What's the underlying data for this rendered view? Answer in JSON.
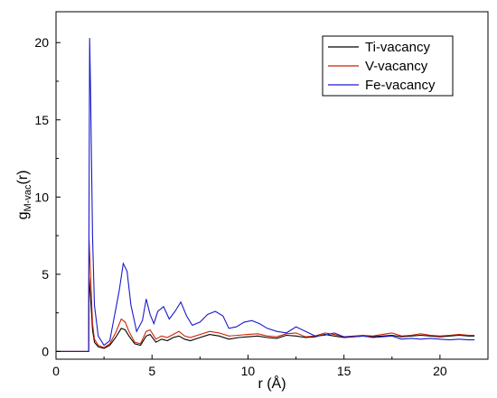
{
  "chart_data": {
    "type": "line",
    "xlabel": "r (Å)",
    "ylabel": "g",
    "ylabel_sub": "M-vac",
    "ylabel_arg": "(r)",
    "xlim": [
      0,
      22.5
    ],
    "ylim": [
      -0.5,
      22
    ],
    "xticks": [
      0,
      5,
      10,
      15,
      20
    ],
    "yticks": [
      0,
      5,
      10,
      15,
      20
    ],
    "legend_position": "top-right",
    "grid": false,
    "series": [
      {
        "name": "Ti-vacancy",
        "color": "#000000",
        "x": [
          0,
          1.7,
          1.72,
          1.8,
          1.9,
          2.0,
          2.2,
          2.5,
          2.8,
          3.1,
          3.4,
          3.6,
          3.8,
          4.1,
          4.4,
          4.7,
          4.9,
          5.2,
          5.5,
          5.8,
          6.1,
          6.4,
          6.7,
          7.0,
          7.5,
          8.0,
          8.5,
          9.0,
          9.5,
          10.0,
          10.5,
          11.0,
          11.5,
          12.0,
          12.5,
          13.0,
          13.5,
          14.0,
          14.5,
          15.0,
          15.5,
          16.0,
          16.5,
          17.0,
          17.5,
          18.0,
          18.5,
          19.0,
          19.5,
          20.0,
          20.5,
          21.0,
          21.5,
          21.8
        ],
        "y": [
          0,
          0,
          4.8,
          3.5,
          1.4,
          0.6,
          0.3,
          0.2,
          0.4,
          0.9,
          1.5,
          1.4,
          1.0,
          0.5,
          0.4,
          1.0,
          1.1,
          0.6,
          0.8,
          0.7,
          0.9,
          1.0,
          0.8,
          0.7,
          0.9,
          1.1,
          1.0,
          0.8,
          0.9,
          0.95,
          1.0,
          0.9,
          0.85,
          1.05,
          1.0,
          0.9,
          0.95,
          1.1,
          1.0,
          0.9,
          0.95,
          1.0,
          0.95,
          1.0,
          1.05,
          0.95,
          1.0,
          1.05,
          1.0,
          0.95,
          1.0,
          1.05,
          1.0,
          1.0
        ]
      },
      {
        "name": "V-vacancy",
        "color": "#cc2200",
        "x": [
          0,
          1.7,
          1.72,
          1.8,
          1.9,
          2.0,
          2.2,
          2.5,
          2.8,
          3.1,
          3.4,
          3.6,
          3.8,
          4.1,
          4.4,
          4.7,
          4.9,
          5.2,
          5.5,
          5.8,
          6.1,
          6.4,
          6.7,
          7.0,
          7.5,
          8.0,
          8.5,
          9.0,
          9.5,
          10.0,
          10.5,
          11.0,
          11.5,
          12.0,
          12.5,
          13.0,
          13.5,
          14.0,
          14.5,
          15.0,
          15.5,
          16.0,
          16.5,
          17.0,
          17.5,
          18.0,
          18.5,
          19.0,
          19.5,
          20.0,
          20.5,
          21.0,
          21.5,
          21.8
        ],
        "y": [
          0,
          0,
          7.3,
          5.0,
          1.8,
          0.8,
          0.4,
          0.25,
          0.5,
          1.2,
          2.1,
          1.9,
          1.3,
          0.6,
          0.5,
          1.3,
          1.4,
          0.8,
          1.0,
          0.9,
          1.1,
          1.3,
          1.0,
          0.9,
          1.1,
          1.3,
          1.2,
          1.0,
          1.05,
          1.1,
          1.15,
          1.0,
          0.95,
          1.15,
          1.2,
          0.95,
          1.0,
          1.2,
          1.1,
          0.95,
          1.0,
          1.05,
          1.0,
          1.1,
          1.2,
          1.0,
          1.05,
          1.15,
          1.05,
          1.0,
          1.05,
          1.1,
          1.05,
          1.05
        ]
      },
      {
        "name": "Fe-vacancy",
        "color": "#1a1acc",
        "x": [
          0,
          1.7,
          1.72,
          1.75,
          1.8,
          1.9,
          2.0,
          2.2,
          2.5,
          2.8,
          3.0,
          3.3,
          3.5,
          3.7,
          3.9,
          4.2,
          4.5,
          4.7,
          4.9,
          5.1,
          5.3,
          5.6,
          5.9,
          6.2,
          6.5,
          6.8,
          7.1,
          7.5,
          7.9,
          8.3,
          8.7,
          9.0,
          9.4,
          9.8,
          10.2,
          10.6,
          11.0,
          11.5,
          12.0,
          12.5,
          13.0,
          13.5,
          14.0,
          14.5,
          15.0,
          15.5,
          16.0,
          16.5,
          17.0,
          17.5,
          18.0,
          18.5,
          19.0,
          19.5,
          20.0,
          20.5,
          21.0,
          21.5,
          21.8
        ],
        "y": [
          0,
          0,
          9.0,
          20.3,
          17.0,
          7.5,
          3.0,
          1.0,
          0.4,
          0.7,
          2.0,
          4.0,
          5.7,
          5.2,
          3.0,
          1.3,
          2.0,
          3.4,
          2.4,
          1.8,
          2.6,
          2.9,
          2.1,
          2.6,
          3.2,
          2.3,
          1.7,
          1.9,
          2.4,
          2.6,
          2.3,
          1.5,
          1.6,
          1.9,
          2.0,
          1.8,
          1.5,
          1.3,
          1.2,
          1.6,
          1.3,
          1.0,
          1.05,
          1.2,
          0.95,
          0.95,
          1.0,
          0.9,
          0.95,
          1.0,
          0.8,
          0.85,
          0.8,
          0.85,
          0.8,
          0.75,
          0.8,
          0.75,
          0.75
        ]
      }
    ]
  }
}
